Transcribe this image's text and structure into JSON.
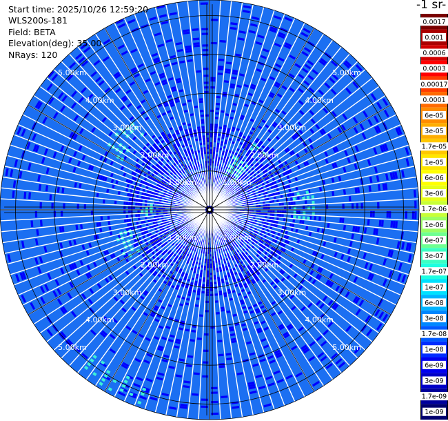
{
  "info": {
    "start_time": "Start time: 2025/10/26 12:59:20",
    "instrument": "WLS200s-181",
    "field": "Field: BETA",
    "elevation": "Elevation(deg): 35.00",
    "nrays": "NRays: 120"
  },
  "colorbar": {
    "title": "-1 sr-",
    "labels": [
      "0.0017",
      "0.001",
      "0.0006",
      "0.0003",
      "0.00017",
      "0.0001",
      "6e-05",
      "3e-05",
      "1.7e-05",
      "1e-05",
      "6e-06",
      "3e-06",
      "1.7e-06",
      "1e-06",
      "6e-07",
      "3e-07",
      "1.7e-07",
      "1e-07",
      "6e-08",
      "3e-08",
      "1.7e-08",
      "1e-08",
      "6e-09",
      "3e-09",
      "1.7e-09",
      "1e-09"
    ],
    "colors": [
      "#7a0000",
      "#aa0000",
      "#d00000",
      "#ff0000",
      "#ff3c00",
      "#ff6a00",
      "#ff8c00",
      "#ffad00",
      "#ffc800",
      "#ffe600",
      "#ffff00",
      "#e6ff1a",
      "#c8ff37",
      "#9bff64",
      "#6eff91",
      "#3cffc3",
      "#1effe1",
      "#00e1ff",
      "#00b4ff",
      "#0087ff",
      "#005aff",
      "#002dff",
      "#0000f0",
      "#0000c8",
      "#00009b",
      "#00006e"
    ]
  },
  "range_rings": [
    {
      "km": 1,
      "label": "1.00km"
    },
    {
      "km": 2,
      "label": "2.00km"
    },
    {
      "km": 3,
      "label": "3.00km"
    },
    {
      "km": 4,
      "label": "4.00km"
    },
    {
      "km": 5,
      "label": "5.00km"
    }
  ],
  "plot": {
    "max_range_km": 5.4,
    "rays": 120,
    "gates": 90,
    "background_color": "#1b6ff2",
    "speckle_color": "#0000ff",
    "highlight_color": "#3cf0d7",
    "gap_color": "#ffffff",
    "grid_color": "#000000",
    "label_color": "#ffffff"
  }
}
